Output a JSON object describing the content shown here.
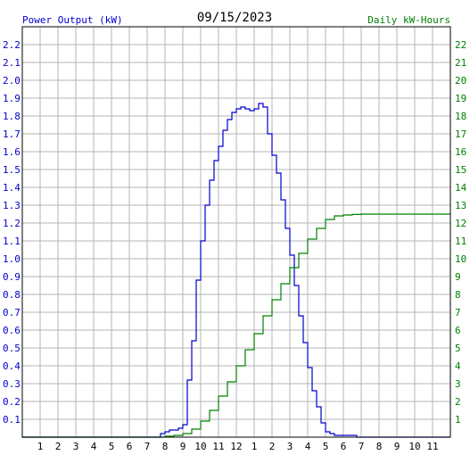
{
  "chart_data": {
    "type": "line",
    "title": "09/15/2023",
    "left_axis_label": "Power Output (kW)",
    "right_axis_label": "Daily kW-Hours",
    "x_tick_labels": [
      "1",
      "2",
      "3",
      "4",
      "5",
      "6",
      "7",
      "8",
      "9",
      "10",
      "11",
      "12",
      "1",
      "2",
      "3",
      "4",
      "5",
      "6",
      "7",
      "8",
      "9",
      "10",
      "11"
    ],
    "x_range": [
      0,
      24
    ],
    "left_ylim": [
      0,
      2.3
    ],
    "left_tick_labels": [
      "0.1",
      "0.2",
      "0.3",
      "0.4",
      "0.5",
      "0.6",
      "0.7",
      "0.8",
      "0.9",
      "1.0",
      "1.1",
      "1.2",
      "1.3",
      "1.4",
      "1.5",
      "1.6",
      "1.7",
      "1.8",
      "1.9",
      "2.0",
      "2.1",
      "2.2"
    ],
    "right_ylim": [
      0,
      23
    ],
    "right_tick_labels": [
      "1",
      "2",
      "3",
      "4",
      "5",
      "6",
      "7",
      "8",
      "9",
      "10",
      "11",
      "12",
      "13",
      "14",
      "15",
      "16",
      "17",
      "18",
      "19",
      "20",
      "21",
      "22"
    ],
    "grid": true,
    "colors": {
      "power": "#0000cc",
      "energy": "#008000",
      "grid": "#b4b4b4",
      "axis": "#000000"
    },
    "series": [
      {
        "axis": "left",
        "x": [
          0,
          7.5,
          7.75,
          8.0,
          8.25,
          8.5,
          8.75,
          9.0,
          9.25,
          9.5,
          9.75,
          10.0,
          10.25,
          10.5,
          10.75,
          11.0,
          11.25,
          11.5,
          11.75,
          12.0,
          12.25,
          12.5,
          12.75,
          13.0,
          13.25,
          13.5,
          13.75,
          14.0,
          14.25,
          14.5,
          14.75,
          15.0,
          15.25,
          15.5,
          15.75,
          16.0,
          16.25,
          16.5,
          16.75,
          17.0,
          17.25,
          17.5,
          17.75,
          18.0,
          18.25,
          18.5,
          18.75,
          19.0,
          19.25,
          19.5,
          19.75,
          20.0,
          20.25,
          20.5,
          20.75,
          24
        ],
        "y": [
          0,
          0,
          0.02,
          0.03,
          0.04,
          0.04,
          0.05,
          0.07,
          0.32,
          0.54,
          0.88,
          1.1,
          1.3,
          1.44,
          1.55,
          1.63,
          1.72,
          1.78,
          1.82,
          1.84,
          1.85,
          1.84,
          1.83,
          1.84,
          1.87,
          1.85,
          1.7,
          1.58,
          1.48,
          1.33,
          1.17,
          1.02,
          0.85,
          0.68,
          0.53,
          0.39,
          0.26,
          0.17,
          0.08,
          0.03,
          0.02,
          0.01,
          0.01,
          0.01,
          0.01,
          0.01,
          0.0,
          0.0,
          0.0,
          0.0,
          0.0,
          0.0,
          0.0,
          0.0,
          0.0,
          0
        ]
      },
      {
        "axis": "right",
        "x": [
          0,
          7.5,
          8.0,
          8.5,
          9.0,
          9.5,
          10.0,
          10.5,
          11.0,
          11.5,
          12.0,
          12.5,
          13.0,
          13.5,
          14.0,
          14.5,
          15.0,
          15.5,
          16.0,
          16.5,
          17.0,
          17.5,
          18.0,
          18.5,
          19.0,
          24
        ],
        "y": [
          0,
          0,
          0.05,
          0.1,
          0.2,
          0.45,
          0.9,
          1.5,
          2.3,
          3.1,
          4.0,
          4.9,
          5.8,
          6.8,
          7.7,
          8.6,
          9.5,
          10.3,
          11.1,
          11.7,
          12.2,
          12.4,
          12.45,
          12.48,
          12.5,
          12.5
        ]
      }
    ]
  }
}
